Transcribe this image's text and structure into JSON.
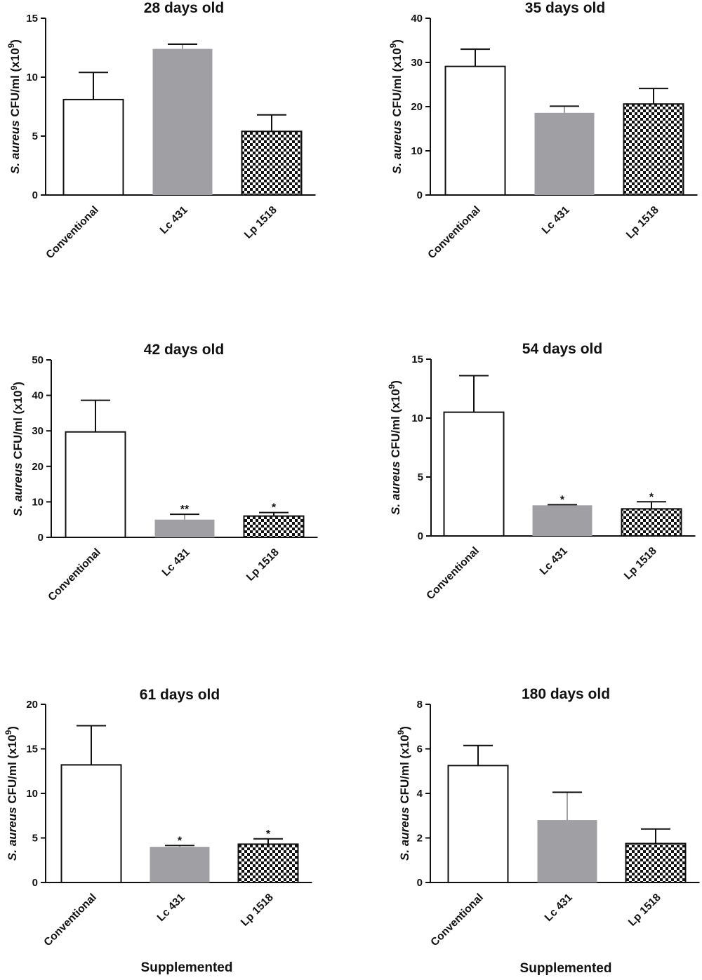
{
  "chart_data": [
    {
      "type": "bar",
      "title": "28 days old",
      "categories": [
        "Conventional",
        "Lc 431",
        "Lp 1518"
      ],
      "values": [
        8.1,
        12.4,
        5.4
      ],
      "errors": [
        2.3,
        0.4,
        1.4
      ],
      "significance": [
        "",
        "",
        ""
      ],
      "ylim": [
        0,
        15
      ],
      "yticks": [
        "0",
        "5",
        "10",
        "15"
      ],
      "ylabel_italic": "S. aureus",
      "ylabel_rest": " CFU/ml (x10",
      "ylabel_exp": "9",
      "ylabel_close": ")",
      "xlabel": ""
    },
    {
      "type": "bar",
      "title": "35 days old",
      "categories": [
        "Conventional",
        "Lc 431",
        "Lp 1518"
      ],
      "values": [
        29.1,
        18.6,
        20.6
      ],
      "errors": [
        3.9,
        1.5,
        3.5
      ],
      "significance": [
        "",
        "",
        ""
      ],
      "ylim": [
        0,
        40
      ],
      "yticks": [
        "0",
        "10",
        "20",
        "30",
        "40"
      ],
      "ylabel_italic": "S. aureus",
      "ylabel_rest": " CFU/ml (x10",
      "ylabel_exp": "9",
      "ylabel_close": ")",
      "xlabel": ""
    },
    {
      "type": "bar",
      "title": "42 days old",
      "categories": [
        "Conventional",
        "Lc 431",
        "Lp 1518"
      ],
      "values": [
        29.7,
        5.0,
        6.0
      ],
      "errors": [
        8.9,
        1.5,
        1.0
      ],
      "significance": [
        "",
        "**",
        "*"
      ],
      "ylim": [
        0,
        50
      ],
      "yticks": [
        "0",
        "10",
        "20",
        "30",
        "40",
        "50"
      ],
      "ylabel_italic": "S. aureus",
      "ylabel_rest": " CFU/ml (x10",
      "ylabel_exp": "9",
      "ylabel_close": ")",
      "xlabel": ""
    },
    {
      "type": "bar",
      "title": "54 days old",
      "categories": [
        "Conventional",
        "Lc 431",
        "Lp 1518"
      ],
      "values": [
        10.5,
        2.6,
        2.3
      ],
      "errors": [
        3.1,
        0.05,
        0.6
      ],
      "significance": [
        "",
        "*",
        "*"
      ],
      "ylim": [
        0,
        15
      ],
      "yticks": [
        "0",
        "5",
        "10",
        "15"
      ],
      "ylabel_italic": "S. aureus",
      "ylabel_rest": " CFU/ml (x10",
      "ylabel_exp": "9",
      "ylabel_close": ")",
      "xlabel": ""
    },
    {
      "type": "bar",
      "title": "61 days old",
      "categories": [
        "Conventional",
        "Lc 431",
        "Lp 1518"
      ],
      "values": [
        13.2,
        4.0,
        4.3
      ],
      "errors": [
        4.4,
        0.15,
        0.6
      ],
      "significance": [
        "",
        "*",
        "*"
      ],
      "ylim": [
        0,
        20
      ],
      "yticks": [
        "0",
        "5",
        "10",
        "15",
        "20"
      ],
      "ylabel_italic": "S. aureus",
      "ylabel_rest": " CFU/ml (x10",
      "ylabel_exp": "9",
      "ylabel_close": ")",
      "xlabel": "Supplemented"
    },
    {
      "type": "bar",
      "title": "180 days old",
      "categories": [
        "Conventional",
        "Lc 431",
        "Lp 1518"
      ],
      "values": [
        5.25,
        2.8,
        1.75
      ],
      "errors": [
        0.9,
        1.25,
        0.65
      ],
      "significance": [
        "",
        "",
        ""
      ],
      "ylim": [
        0,
        8
      ],
      "yticks": [
        "0",
        "2",
        "4",
        "6",
        "8"
      ],
      "ylabel_italic": "S. aureus",
      "ylabel_rest": " CFU/ml (x10",
      "ylabel_exp": "9",
      "ylabel_close": ")",
      "xlabel": "Supplemented"
    }
  ],
  "bar_styles": {
    "fills": [
      "#ffffff",
      "#a0a0a4",
      "checker"
    ],
    "stroke": "#111111",
    "gray": "#a0a0a4"
  }
}
